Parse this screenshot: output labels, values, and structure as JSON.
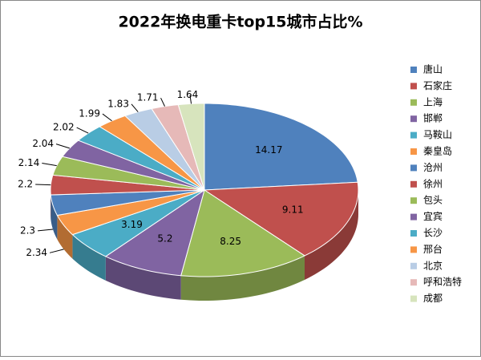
{
  "chart_data": {
    "type": "pie3d",
    "title": "2022年换电重卡top15城市占比%",
    "categories": [
      "唐山",
      "石家庄",
      "上海",
      "邯郸",
      "马鞍山",
      "秦皇岛",
      "沧州",
      "徐州",
      "包头",
      "宜宾",
      "长沙",
      "邢台",
      "北京",
      "呼和浩特",
      "成都"
    ],
    "values": [
      14.17,
      9.11,
      8.25,
      5.2,
      3.19,
      2.34,
      2.3,
      2.2,
      2.14,
      2.04,
      2.02,
      1.99,
      1.83,
      1.71,
      1.64
    ],
    "colors": [
      "#4f81bd",
      "#c0504d",
      "#9bbb59",
      "#8064a2",
      "#4bacc6",
      "#f79646",
      "#4f81bd",
      "#c0504d",
      "#9bbb59",
      "#8064a2",
      "#4bacc6",
      "#f79646",
      "#b9cde5",
      "#e6b9b8",
      "#d7e4bd"
    ],
    "legend": "right"
  }
}
